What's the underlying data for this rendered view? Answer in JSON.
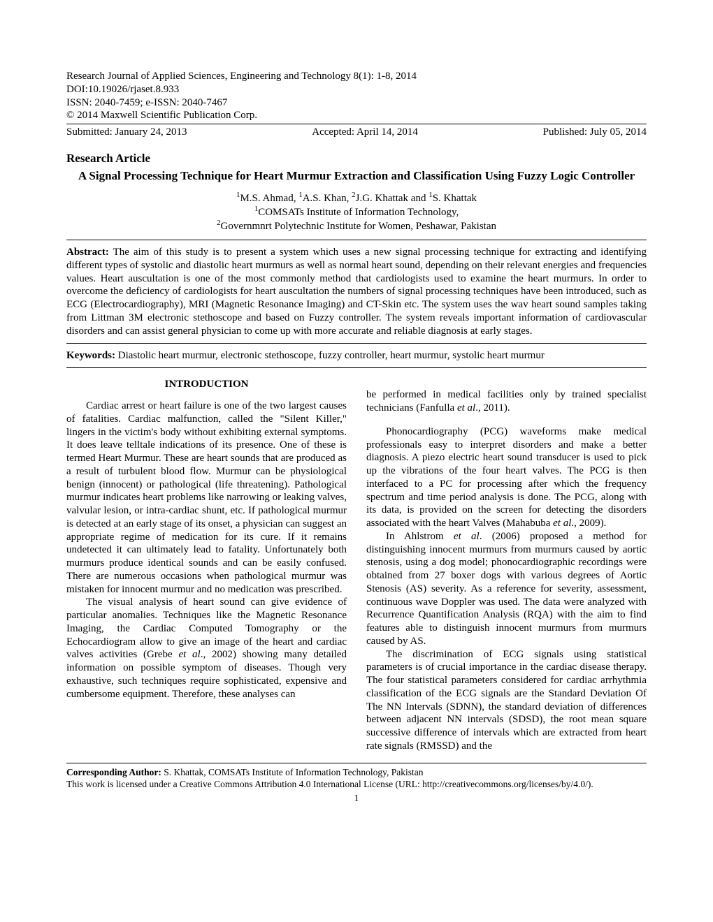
{
  "header": {
    "journal": "Research Journal of Applied Sciences, Engineering and Technology 8(1): 1-8, 2014",
    "doi": "DOI:10.19026/rjaset.8.933",
    "issn": "ISSN: 2040-7459; e-ISSN: 2040-7467",
    "copyright": "© 2014 Maxwell Scientific Publication Corp.",
    "submitted": "Submitted: January 24, 2013",
    "accepted": "Accepted: April 14, 2014",
    "published": "Published: July 05, 2014"
  },
  "article_type": "Research Article",
  "title": "A Signal Processing Technique for Heart Murmur Extraction and Classification Using Fuzzy Logic Controller",
  "authors_html": "<span class='sup'>1</span>M.S. Ahmad, <span class='sup'>1</span>A.S. Khan, <span class='sup'>2</span>J.G. Khattak and <span class='sup'>1</span>S. Khattak",
  "affil1": "<span class='sup'>1</span>COMSATs Institute of Information Technology,",
  "affil2": "<span class='sup'>2</span>Governmnrt Polytechnic Institute for Women, Peshawar, Pakistan",
  "abstract_label": "Abstract:",
  "abstract_text": " The aim of this study is to present a system which uses a new signal processing technique for extracting and identifying different types of systolic and diastolic heart murmurs as well as normal heart sound, depending on their relevant energies and frequencies values. Heart auscultation is one of the most commonly method that cardiologists used to examine the heart murmurs. In order to overcome the deficiency of cardiologists for heart auscultation the numbers of signal processing techniques have been introduced, such as ECG (Electrocardiography), MRI (Magnetic Resonance Imaging) and CT-Skin etc. The system uses the wav heart sound samples taking from Littman 3M electronic stethoscope and based on Fuzzy controller. The system reveals important information of cardiovascular disorders and can assist general physician to come up with more accurate and reliable diagnosis at early stages.",
  "keywords_label": "Keywords:",
  "keywords_text": " Diastolic heart murmur, electronic stethoscope, fuzzy controller, heart murmur, systolic heart murmur",
  "intro_heading": "INTRODUCTION",
  "col1_p1": "Cardiac arrest or heart failure is one of the two largest causes of fatalities. Cardiac malfunction, called the \"Silent Killer,\" lingers in the victim's body without exhibiting external symptoms. It does leave telltale indications of its presence. One of these is termed Heart Murmur. These are heart sounds that are produced as a result of turbulent blood flow. Murmur can be physiological benign (innocent) or pathological (life threatening). Pathological murmur indicates heart problems like narrowing or leaking valves, valvular lesion, or intra-cardiac shunt, etc. If pathological murmur is detected at an early stage of its onset, a physician can suggest an appropriate regime of medication for its cure. If it remains undetected it can ultimately lead to fatality. Unfortunately both murmurs produce identical sounds and can be easily confused. There are numerous occasions when pathological murmur was mistaken for innocent murmur and no medication was prescribed.",
  "col1_p2": "The visual analysis of heart sound can give evidence of particular anomalies. Techniques like the Magnetic Resonance Imaging, the Cardiac Computed Tomography or the Echocardiogram allow to give an image of the heart and cardiac valves activities (Grebe <span class='italic'>et al</span>., 2002) showing many detailed information on possible symptom of diseases. Though very exhaustive, such techniques require sophisticated, expensive and cumbersome equipment. Therefore, these analyses can",
  "col2_p1": "be performed in medical facilities only by trained specialist technicians (Fanfulla <span class='italic'>et al</span>., 2011).",
  "col2_p2": "Phonocardiography (PCG) waveforms make medical professionals easy to interpret disorders and make a better diagnosis. A piezo electric heart sound transducer is used to pick up the vibrations of the four heart valves. The PCG is then interfaced to a PC for processing after which the frequency spectrum and time period analysis is done. The PCG, along with its data, is provided on the screen for detecting the disorders associated with the heart Valves (Mahabuba <span class='italic'>et al</span>., 2009).",
  "col2_p3": "In Ahlstrom <span class='italic'>et al</span>. (2006) proposed a method for distinguishing innocent murmurs from murmurs caused by aortic stenosis, using a dog model; phonocardiographic recordings were obtained from 27 boxer dogs with various degrees of Aortic Stenosis (AS) severity. As a reference for severity, assessment, continuous wave Doppler was used. The data were analyzed with Recurrence Quantification Analysis (RQA) with the aim to find features able to distinguish innocent murmurs from murmurs caused by AS.",
  "col2_p4": "The discrimination of ECG signals using statistical parameters is of crucial importance in the cardiac disease therapy. The four statistical parameters considered for cardiac arrhythmia classification of the ECG signals are the Standard Deviation Of The NN Intervals (SDNN), the standard deviation of differences between adjacent NN intervals (SDSD), the root mean square successive difference of intervals which are extracted from heart rate signals (RMSSD) and the",
  "footer_label": "Corresponding Author:",
  "footer_text": " S. Khattak, COMSATs Institute of Information Technology, Pakistan",
  "license_text": "This work is licensed under a Creative Commons Attribution 4.0 International License (URL: http://creativecommons.org/licenses/by/4.0/).",
  "page_number": "1"
}
